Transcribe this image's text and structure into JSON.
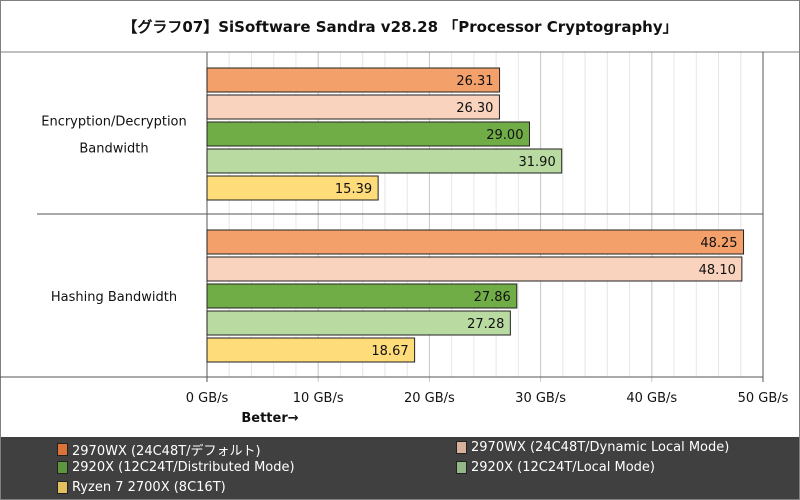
{
  "chart_data": {
    "type": "bar",
    "orientation": "horizontal",
    "title": "【グラフ07】SiSoftware Sandra v28.28 「Processor Cryptography」",
    "categories": [
      "Encryption/Decryption Bandwidth",
      "Hashing Bandwidth"
    ],
    "series": [
      {
        "name": "2970WX (24C48T/デフォルト)",
        "color": "#F4A06B",
        "legend_color": "#D9733A",
        "values": [
          26.31,
          48.25
        ]
      },
      {
        "name": "2970WX (24C48T/Dynamic Local Mode)",
        "color": "#F9D3BE",
        "legend_color": "#D8B09C",
        "values": [
          26.3,
          48.1
        ]
      },
      {
        "name": "2920X (12C24T/Distributed Mode)",
        "color": "#70AD47",
        "legend_color": "#5E9640",
        "values": [
          29.0,
          27.86
        ]
      },
      {
        "name": "2920X (12C24T/Local Mode)",
        "color": "#B9DBA2",
        "legend_color": "#93B785",
        "values": [
          31.9,
          27.28
        ]
      },
      {
        "name": "Ryzen 7 2700X (8C16T)",
        "color": "#FFDC7A",
        "legend_color": "#E2C05E",
        "values": [
          15.39,
          18.67
        ]
      }
    ],
    "xlim": [
      0,
      50
    ],
    "xticks": [
      "0 GB/s",
      "10 GB/s",
      "20 GB/s",
      "30 GB/s",
      "40 GB/s",
      "50 GB/s"
    ],
    "xtick_values": [
      0,
      10,
      20,
      30,
      40,
      50
    ],
    "xlabel": "Better→",
    "grid": true,
    "legend_position": "bottom"
  }
}
